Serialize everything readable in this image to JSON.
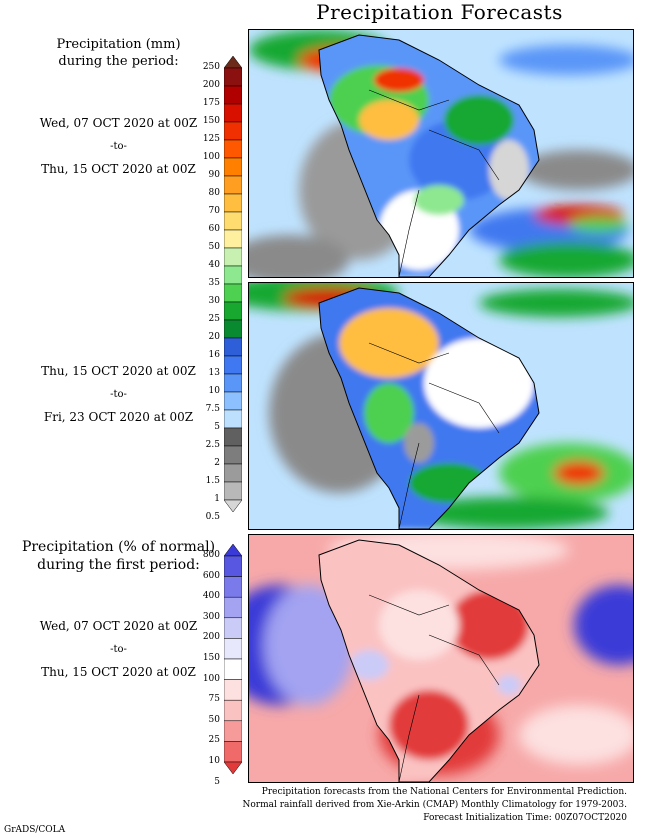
{
  "title": "Precipitation Forecasts",
  "panel1_heading": [
    "Precipitation (mm)",
    "during the period:"
  ],
  "period1": {
    "start": "Wed, 07 OCT 2020 at 00Z",
    "sep": "-to-",
    "end": "Thu, 15 OCT 2020 at 00Z"
  },
  "period2": {
    "start": "Thu, 15 OCT 2020 at 00Z",
    "sep": "-to-",
    "end": "Fri, 23 OCT 2020 at 00Z"
  },
  "panel3_heading": [
    "Precipitation (% of normal)",
    "during the first period:"
  ],
  "period3": {
    "start": "Wed, 07 OCT 2020 at 00Z",
    "sep": "-to-",
    "end": "Thu, 15 OCT 2020 at 00Z"
  },
  "precip_scale": {
    "ticks": [
      "250",
      "200",
      "175",
      "150",
      "125",
      "100",
      "90",
      "80",
      "70",
      "60",
      "50",
      "40",
      "35",
      "30",
      "25",
      "20",
      "16",
      "13",
      "10",
      "7.5",
      "5",
      "2.5",
      "2",
      "1.5",
      "1",
      "0.5"
    ],
    "colors": [
      "#6b2a1a",
      "#8b1010",
      "#b00000",
      "#d81000",
      "#f03000",
      "#ff5800",
      "#ff8000",
      "#ff9e20",
      "#ffbe40",
      "#ffdc70",
      "#fff0a0",
      "#c8f0b0",
      "#8ee890",
      "#4ed050",
      "#18a830",
      "#0a8a30",
      "#2e5fd8",
      "#3f78f0",
      "#5a96f8",
      "#8cc0ff",
      "#bde0ff",
      "#606060",
      "#7d7d7d",
      "#9b9b9b",
      "#b8b8b8",
      "#d6d6d6"
    ]
  },
  "percent_scale": {
    "ticks": [
      "800",
      "600",
      "400",
      "300",
      "200",
      "150",
      "100",
      "75",
      "50",
      "25",
      "10",
      "5"
    ],
    "colors": [
      "#3a3ad8",
      "#5757e2",
      "#7a7aeb",
      "#a3a3f2",
      "#cbcbf8",
      "#e8e8fc",
      "#ffffff",
      "#fde0e0",
      "#fbc2c2",
      "#f79a9a",
      "#f06a6a",
      "#e23a3a"
    ]
  },
  "credits": [
    "Precipitation forecasts from the National Centers for Environmental Prediction.",
    "Normal rainfall derived from Xie-Arkin (CMAP) Monthly Climatology for 1979-2003.",
    "Forecast Initialization Time: 00Z07OCT2020"
  ],
  "footer": "GrADS/COLA"
}
